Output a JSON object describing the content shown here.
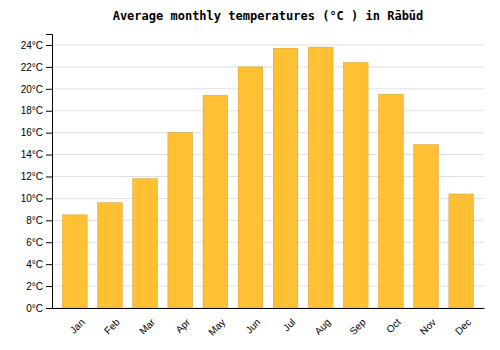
{
  "chart_data": {
    "type": "bar",
    "title": "Average monthly temperatures (°C ) in Rābūd",
    "categories": [
      "Jan",
      "Feb",
      "Mar",
      "Apr",
      "May",
      "Jun",
      "Jul",
      "Aug",
      "Sep",
      "Oct",
      "Nov",
      "Dec"
    ],
    "values": [
      8.5,
      9.6,
      11.8,
      16.0,
      19.4,
      22.0,
      23.7,
      23.8,
      22.4,
      19.5,
      14.9,
      10.4
    ],
    "color": "#FFC133",
    "ylim": [
      0,
      25
    ],
    "yticks": [
      {
        "value": 0,
        "label": "0°C"
      },
      {
        "value": 2,
        "label": "2°C"
      },
      {
        "value": 4,
        "label": "4°C"
      },
      {
        "value": 6,
        "label": "6°C"
      },
      {
        "value": 8,
        "label": "8°C"
      },
      {
        "value": 10,
        "label": "10°C"
      },
      {
        "value": 12,
        "label": "12°C"
      },
      {
        "value": 14,
        "label": "14°C"
      },
      {
        "value": 16,
        "label": "16°C"
      },
      {
        "value": 18,
        "label": "18°C"
      },
      {
        "value": 20,
        "label": "20°C"
      },
      {
        "value": 22,
        "label": "22°C"
      },
      {
        "value": 24,
        "label": "24°C"
      }
    ],
    "grid": true
  }
}
